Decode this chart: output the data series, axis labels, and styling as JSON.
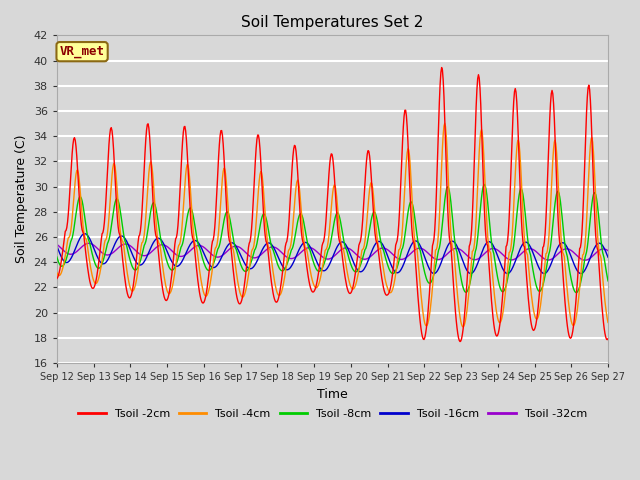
{
  "title": "Soil Temperatures Set 2",
  "xlabel": "Time",
  "ylabel": "Soil Temperature (C)",
  "ylim": [
    16,
    42
  ],
  "annotation_text": "VR_met",
  "annotation_color": "#8B0000",
  "annotation_bg": "#FFFF99",
  "annotation_border": "#8B6914",
  "bg_color": "#D8D8D8",
  "plot_bg": "#D8D8D8",
  "grid_color": "#FFFFFF",
  "series": [
    {
      "label": "Tsoil -2cm",
      "color": "#FF0000"
    },
    {
      "label": "Tsoil -4cm",
      "color": "#FF8C00"
    },
    {
      "label": "Tsoil -8cm",
      "color": "#00CC00"
    },
    {
      "label": "Tsoil -16cm",
      "color": "#0000CC"
    },
    {
      "label": "Tsoil -32cm",
      "color": "#9900CC"
    }
  ],
  "xtick_labels": [
    "Sep 12",
    "Sep 13",
    "Sep 14",
    "Sep 15",
    "Sep 16",
    "Sep 17",
    "Sep 18",
    "Sep 19",
    "Sep 20",
    "Sep 21",
    "Sep 22",
    "Sep 23",
    "Sep 24",
    "Sep 25",
    "Sep 26",
    "Sep 27"
  ],
  "ytick_values": [
    16,
    18,
    20,
    22,
    24,
    26,
    28,
    30,
    32,
    34,
    36,
    38,
    40,
    42
  ]
}
